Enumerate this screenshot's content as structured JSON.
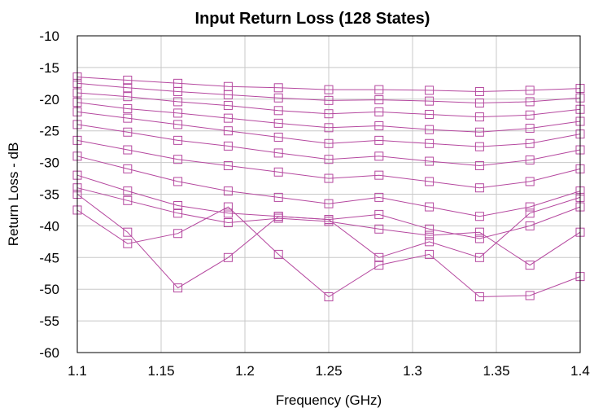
{
  "chart_data": {
    "type": "line",
    "title": "Input Return Loss (128 States)",
    "xlabel": "Frequency (GHz)",
    "ylabel": "Return Loss - dB",
    "xlim": [
      1.1,
      1.4
    ],
    "ylim": [
      -60,
      -10
    ],
    "xticks": [
      1.1,
      1.15,
      1.2,
      1.25,
      1.3,
      1.35,
      1.4
    ],
    "yticks": [
      -10,
      -15,
      -20,
      -25,
      -30,
      -35,
      -40,
      -45,
      -50,
      -55,
      -60
    ],
    "xtick_labels": [
      "1.1",
      "1.15",
      "1.2",
      "1.25",
      "1.3",
      "1.35",
      "1.4"
    ],
    "ytick_labels": [
      "-10",
      "-15",
      "-20",
      "-25",
      "-30",
      "-35",
      "-40",
      "-45",
      "-50",
      "-55",
      "-60"
    ],
    "grid": true,
    "series_color": "#b5489f",
    "marker": "square",
    "marker_x": [
      1.1,
      1.13,
      1.16,
      1.19,
      1.22,
      1.25,
      1.28,
      1.31,
      1.34,
      1.37,
      1.4
    ],
    "state_count": 128,
    "series": [
      {
        "x": [
          1.1,
          1.13,
          1.16,
          1.19,
          1.22,
          1.25,
          1.28,
          1.31,
          1.34,
          1.37,
          1.4
        ],
        "y": [
          -16.5,
          -17,
          -17.5,
          -18,
          -18.2,
          -18.5,
          -18.5,
          -18.6,
          -18.8,
          -18.6,
          -18.3
        ]
      },
      {
        "x": [
          1.1,
          1.13,
          1.16,
          1.19,
          1.22,
          1.25,
          1.28,
          1.31,
          1.34,
          1.37,
          1.4
        ],
        "y": [
          -17.5,
          -18.2,
          -18.8,
          -19.3,
          -19.8,
          -20.2,
          -20.1,
          -20.3,
          -20.6,
          -20.4,
          -19.8
        ]
      },
      {
        "x": [
          1.1,
          1.13,
          1.16,
          1.19,
          1.22,
          1.25,
          1.28,
          1.31,
          1.34,
          1.37,
          1.4
        ],
        "y": [
          -19,
          -19.6,
          -20.4,
          -21,
          -21.8,
          -22.3,
          -22,
          -22.4,
          -22.8,
          -22.5,
          -21.6
        ]
      },
      {
        "x": [
          1.1,
          1.13,
          1.16,
          1.19,
          1.22,
          1.25,
          1.28,
          1.31,
          1.34,
          1.37,
          1.4
        ],
        "y": [
          -20.5,
          -21.5,
          -22.2,
          -23,
          -23.8,
          -24.5,
          -24.2,
          -24.8,
          -25.2,
          -24.6,
          -23.5
        ]
      },
      {
        "x": [
          1.1,
          1.13,
          1.16,
          1.19,
          1.22,
          1.25,
          1.28,
          1.31,
          1.34,
          1.37,
          1.4
        ],
        "y": [
          -22,
          -23,
          -24,
          -25,
          -26,
          -27,
          -26.5,
          -27,
          -27.5,
          -27,
          -25.5
        ]
      },
      {
        "x": [
          1.1,
          1.13,
          1.16,
          1.19,
          1.22,
          1.25,
          1.28,
          1.31,
          1.34,
          1.37,
          1.4
        ],
        "y": [
          -24,
          -25.2,
          -26.5,
          -27.4,
          -28.5,
          -29.5,
          -29,
          -29.8,
          -30.5,
          -29.6,
          -28
        ]
      },
      {
        "x": [
          1.1,
          1.13,
          1.16,
          1.19,
          1.22,
          1.25,
          1.28,
          1.31,
          1.34,
          1.37,
          1.4
        ],
        "y": [
          -26.5,
          -28,
          -29.5,
          -30.5,
          -31.5,
          -32.5,
          -32,
          -33,
          -34,
          -33,
          -31
        ]
      },
      {
        "x": [
          1.1,
          1.13,
          1.16,
          1.19,
          1.22,
          1.25,
          1.28,
          1.31,
          1.34,
          1.37,
          1.4
        ],
        "y": [
          -29,
          -31,
          -33,
          -34.5,
          -35.5,
          -36.5,
          -35.5,
          -37,
          -38.5,
          -37,
          -34.5
        ]
      },
      {
        "x": [
          1.1,
          1.13,
          1.16,
          1.19,
          1.22,
          1.25,
          1.28,
          1.31,
          1.34,
          1.37,
          1.4
        ],
        "y": [
          -32,
          -34.5,
          -36.8,
          -38,
          -38.5,
          -39,
          -38.2,
          -40.5,
          -42,
          -40,
          -37
        ]
      },
      {
        "x": [
          1.1,
          1.13,
          1.16,
          1.19,
          1.22,
          1.25,
          1.28,
          1.31,
          1.34,
          1.37,
          1.4
        ],
        "y": [
          -35,
          -41,
          -49.8,
          -45,
          -38.5,
          -39,
          -45,
          -42.5,
          -45,
          -38,
          -35.5
        ]
      },
      {
        "x": [
          1.1,
          1.13,
          1.16,
          1.19,
          1.22,
          1.25,
          1.28,
          1.31,
          1.34,
          1.37,
          1.4
        ],
        "y": [
          -37.5,
          -42.8,
          -41.2,
          -37,
          -44.5,
          -51.2,
          -46.2,
          -44.5,
          -51.2,
          -51,
          -48
        ]
      },
      {
        "x": [
          1.1,
          1.13,
          1.16,
          1.19,
          1.22,
          1.25,
          1.28,
          1.31,
          1.34,
          1.37,
          1.4
        ],
        "y": [
          -34,
          -36,
          -38,
          -39.5,
          -38.8,
          -39.3,
          -40.5,
          -41.5,
          -41,
          -46.2,
          -41
        ]
      }
    ]
  }
}
